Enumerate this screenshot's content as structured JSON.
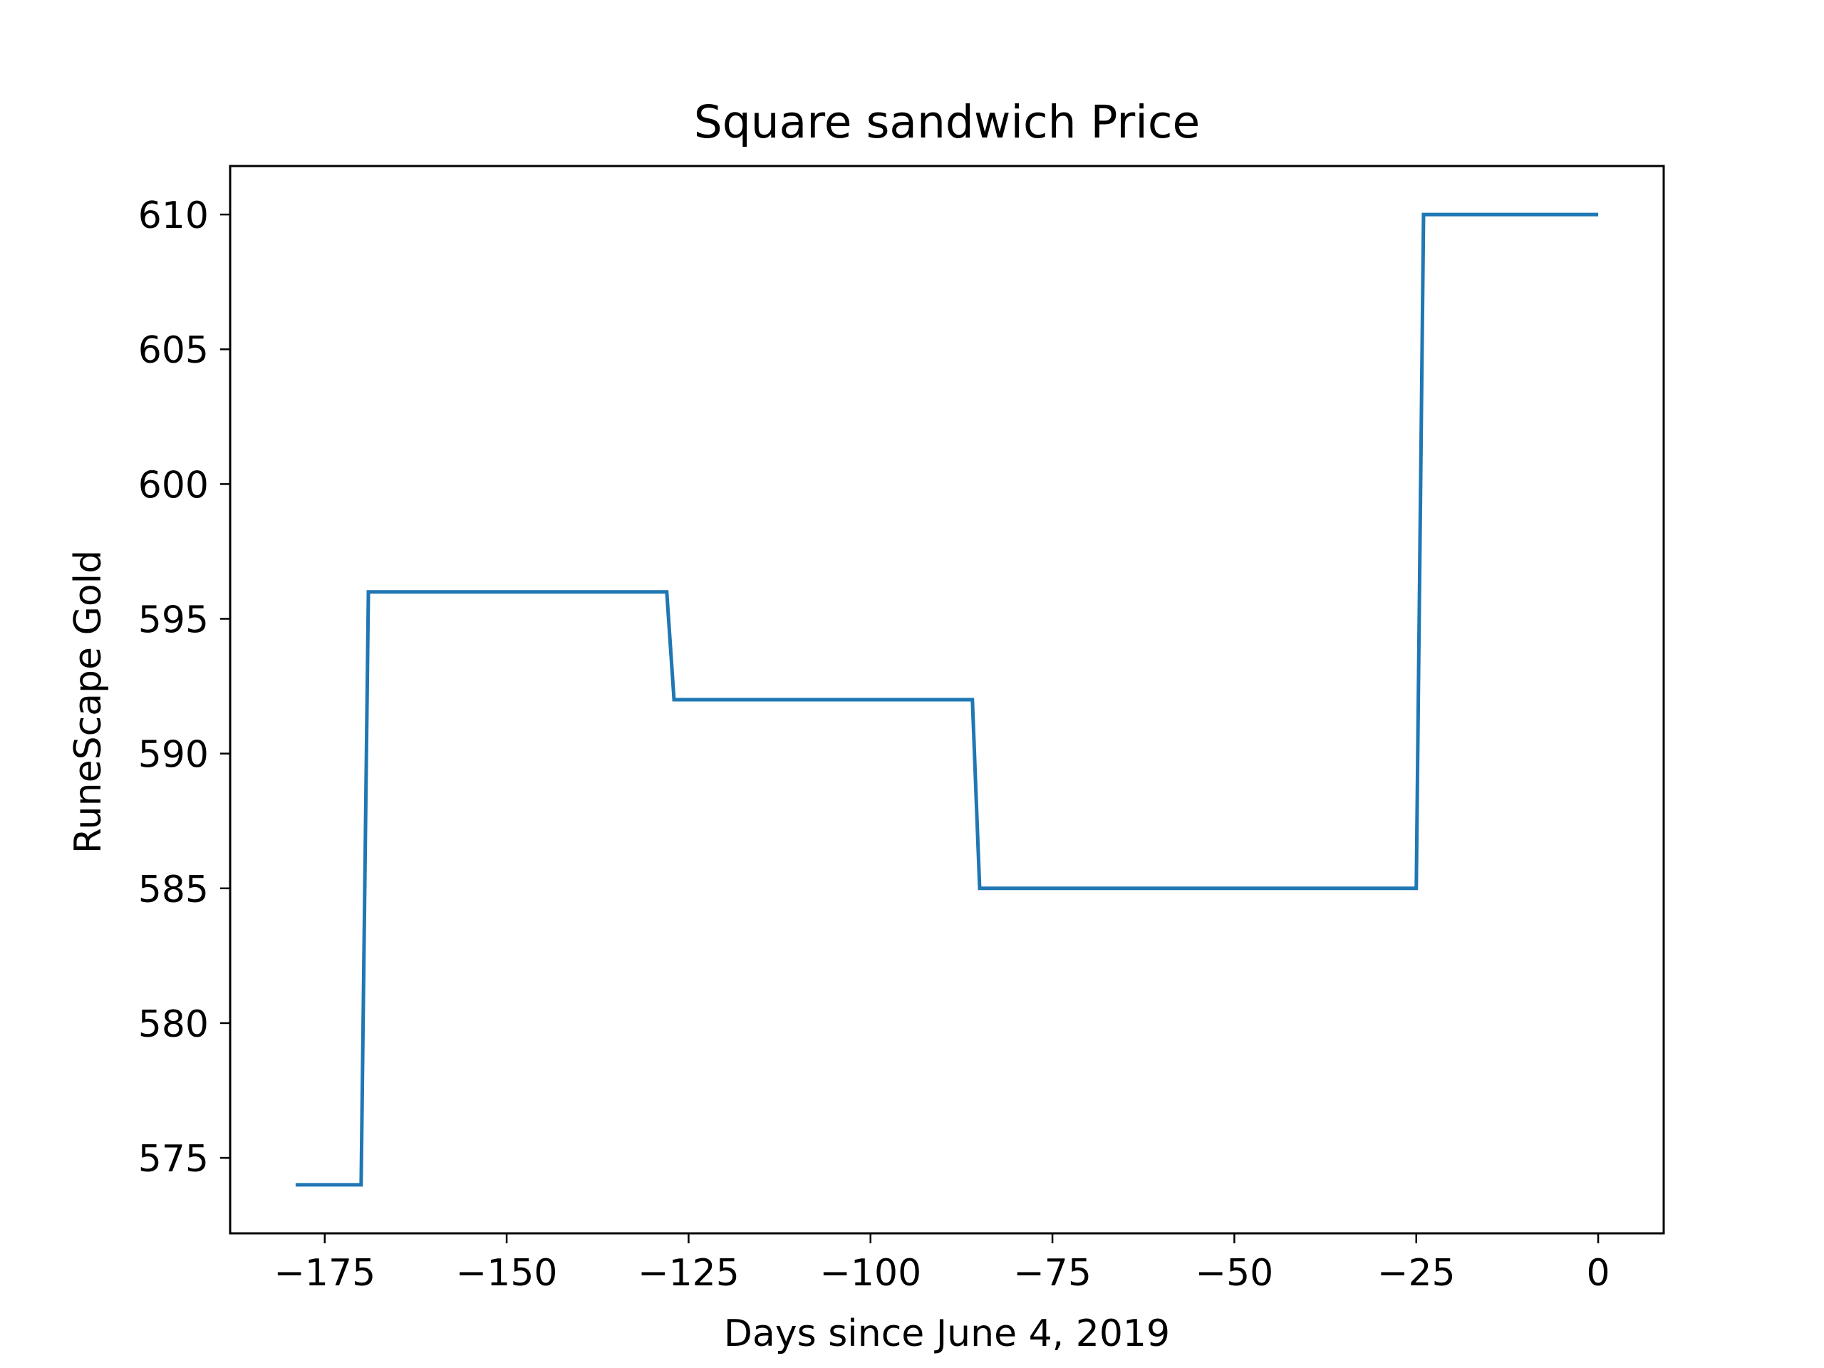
{
  "chart_data": {
    "type": "line",
    "title": "Square sandwich Price",
    "xlabel": "Days since June 4, 2019",
    "ylabel": "RuneScape Gold",
    "xlim": [
      -188,
      9
    ],
    "ylim": [
      572.2,
      611.8
    ],
    "xticks": [
      {
        "value": -175,
        "label": "−175"
      },
      {
        "value": -150,
        "label": "−150"
      },
      {
        "value": -125,
        "label": "−125"
      },
      {
        "value": -100,
        "label": "−100"
      },
      {
        "value": -75,
        "label": "−75"
      },
      {
        "value": -50,
        "label": "−50"
      },
      {
        "value": -25,
        "label": "−25"
      },
      {
        "value": 0,
        "label": "0"
      }
    ],
    "yticks": [
      {
        "value": 575,
        "label": "575"
      },
      {
        "value": 580,
        "label": "580"
      },
      {
        "value": 585,
        "label": "585"
      },
      {
        "value": 590,
        "label": "590"
      },
      {
        "value": 595,
        "label": "595"
      },
      {
        "value": 600,
        "label": "600"
      },
      {
        "value": 605,
        "label": "605"
      },
      {
        "value": 610,
        "label": "610"
      }
    ],
    "grid": false,
    "series": [
      {
        "color": "#1f77b4",
        "x": [
          -179,
          -170,
          -169,
          -128,
          -127,
          -86,
          -85,
          -25,
          -24,
          0
        ],
        "y": [
          574,
          574,
          596,
          596,
          592,
          592,
          585,
          585,
          610,
          610
        ]
      }
    ]
  }
}
